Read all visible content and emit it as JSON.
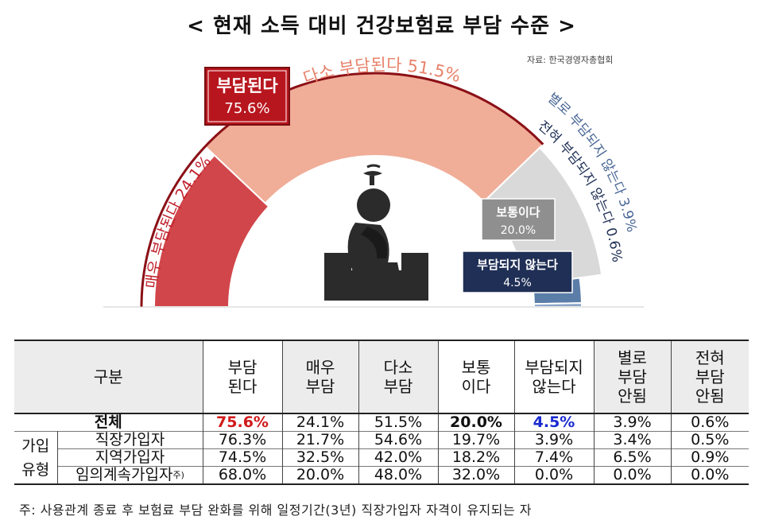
{
  "title": "< 현재 소득 대비 건강보험료 부담 수준 >",
  "source": "자료: 한국경영자총협회",
  "chart_data": {
    "type": "semi-donut",
    "summary": {
      "label": "부담된다",
      "value": "75.6%"
    },
    "segments": [
      {
        "name": "매우 부담된다",
        "label": "매우 부담된다 24.1%",
        "value": 24.1,
        "color": "#d1464a"
      },
      {
        "name": "다소 부담된다",
        "label": "다소 부담된다 51.5%",
        "value": 51.5,
        "color": "#f0ad98"
      },
      {
        "name": "보통이다",
        "label": "보통이다",
        "value": 20.0,
        "value_label": "20.0%",
        "color": "#d9d9d9"
      },
      {
        "name": "별로 부담되지 않는다",
        "label": "별로 부담되지 않는다 3.9%",
        "value": 3.9,
        "color": "#5b7ea8"
      },
      {
        "name": "전혀 부담되지 않는다",
        "label": "전혀 부담되지 않는다 0.6%",
        "value": 0.6,
        "color": "#8aa5c8"
      }
    ],
    "not_burden_box": {
      "label": "부담되지 않는다",
      "value": "4.5%"
    }
  },
  "table": {
    "headers": [
      "구분",
      "부담\n된다",
      "매우\n부담",
      "다소\n부담",
      "보통\n이다",
      "부담되지\n않는다",
      "별로\n부담\n안됨",
      "전혀\n부담\n안됨"
    ],
    "group_label": "가입\n유형",
    "total_row": {
      "label": "전체",
      "values": [
        "75.6%",
        "24.1%",
        "51.5%",
        "20.0%",
        "4.5%",
        "3.9%",
        "0.6%"
      ]
    },
    "rows": [
      {
        "label": "직장가입자",
        "values": [
          "76.3%",
          "21.7%",
          "54.6%",
          "19.7%",
          "3.9%",
          "3.4%",
          "0.5%"
        ]
      },
      {
        "label": "지역가입자",
        "values": [
          "74.5%",
          "32.5%",
          "42.0%",
          "18.2%",
          "7.4%",
          "6.5%",
          "0.9%"
        ]
      },
      {
        "label": "임의계속가입자",
        "note_mark": "주)",
        "values": [
          "68.0%",
          "20.0%",
          "48.0%",
          "32.0%",
          "0.0%",
          "0.0%",
          "0.0%"
        ]
      }
    ]
  },
  "footnote": "주: 사용관계 종료 후 보험료 부담 완화를 위해 일정기간(3년) 직장가입자 자격이 유지되는 자"
}
